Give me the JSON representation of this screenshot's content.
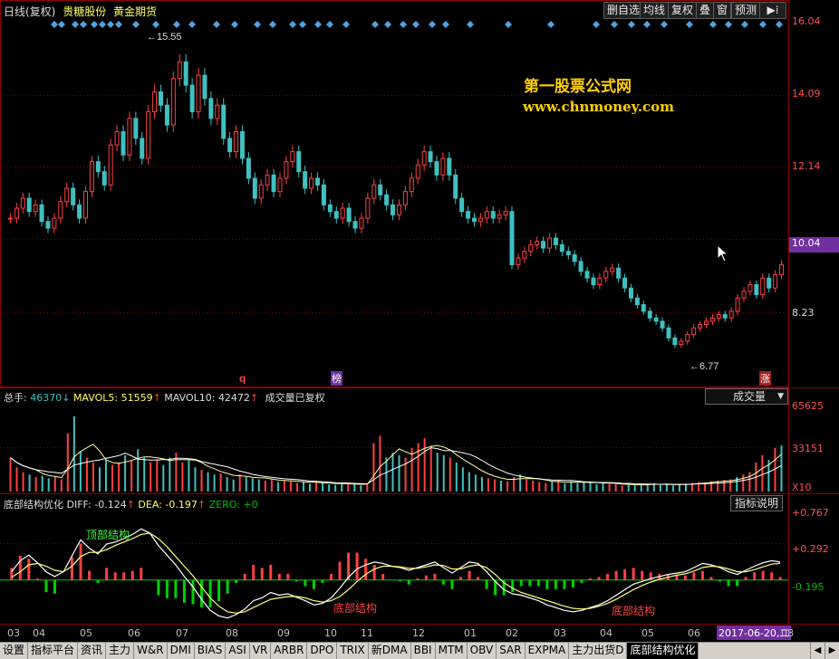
{
  "header": {
    "title": "日线(复权)",
    "stock_name": "贵糖股份",
    "concept": "黄金期货",
    "buttons": [
      "删自选",
      "均线",
      "复权",
      "叠",
      "窗",
      "预测"
    ]
  },
  "watermark": {
    "name": "第一股票公式网",
    "url": "www.chnmoney.com"
  },
  "price_panel": {
    "axis_labels": [
      "16.04",
      "14.09",
      "12.14",
      "10.04",
      "8.23"
    ],
    "current_price": "10.04",
    "high_mark": "15.55",
    "low_mark": "6.77",
    "markers": [
      "q",
      "榜",
      "涨"
    ]
  },
  "volume_panel": {
    "legend_total_label": "总手:",
    "legend_total_value": "46370",
    "legend_mavol5_label": "MAVOL5:",
    "legend_mavol5_value": "51559",
    "legend_mavol10_label": "MAVOL10:",
    "legend_mavol10_value": "42472",
    "legend_note": "成交量已复权",
    "indicator_select": "成交量",
    "axis_labels": [
      "65625",
      "33151",
      "X10"
    ]
  },
  "indicator_panel": {
    "name": "底部结构优化",
    "diff_label": "DIFF:",
    "diff_value": "-0.124",
    "dea_label": "DEA:",
    "dea_value": "-0.197",
    "zero_label": "ZERO:",
    "zero_value": "+0",
    "help_button": "指标说明",
    "axis_labels": [
      "+0.767",
      "+0.292",
      "-0.195"
    ],
    "annotations": {
      "top": "顶部结构",
      "bottom_1": "底部结构",
      "bottom_2": "底部结构"
    }
  },
  "x_axis": {
    "months": [
      "03",
      "04",
      "05",
      "06",
      "07",
      "08",
      "09",
      "10",
      "11",
      "12",
      "01",
      "02",
      "03",
      "04",
      "05",
      "06"
    ],
    "cursor_date": "2017-06-20,二",
    "cursor_tail": "08"
  },
  "tabs": [
    "设置",
    "指标平台",
    "资讯",
    "主力",
    "W&R",
    "DMI",
    "BIAS",
    "ASI",
    "VR",
    "ARBR",
    "DPO",
    "TRIX",
    "新DMA",
    "BBI",
    "MTM",
    "OBV",
    "SAR",
    "EXPMA",
    "主力出货D",
    "底部结构优化"
  ],
  "active_tab": "底部结构优化",
  "colors": {
    "up": "#ff4040",
    "down": "#40c0c0",
    "grid": "#8b0000",
    "axis_label": "#ff5050",
    "watermark": "#ffd000",
    "diamond": "#4fa3e0",
    "diff_line": "#ffffff",
    "dea_line": "#ffff80",
    "zero_line": "#00d000"
  },
  "chart_data": {
    "type": "line",
    "price_ylim": [
      6.0,
      16.4
    ],
    "volume_ylim": [
      0,
      68000
    ],
    "indicator_ylim": [
      -0.62,
      0.98
    ],
    "price_series": [
      10.6,
      10.9,
      11.2,
      10.8,
      11.0,
      10.5,
      10.3,
      10.6,
      11.1,
      11.5,
      11.0,
      10.6,
      11.4,
      12.3,
      12.0,
      11.6,
      12.8,
      13.2,
      12.5,
      13.6,
      13.0,
      12.4,
      13.8,
      14.4,
      14.0,
      13.4,
      14.8,
      15.3,
      14.6,
      13.8,
      14.9,
      14.2,
      13.6,
      14.0,
      13.0,
      12.6,
      13.2,
      12.4,
      11.8,
      11.2,
      11.6,
      11.9,
      11.4,
      11.8,
      12.3,
      12.6,
      12.0,
      11.5,
      11.8,
      11.6,
      11.0,
      10.8,
      10.6,
      10.9,
      10.5,
      10.3,
      10.6,
      11.2,
      11.6,
      11.3,
      11.0,
      10.7,
      11.0,
      11.4,
      11.8,
      12.2,
      12.6,
      12.3,
      11.9,
      12.4,
      11.9,
      11.2,
      10.8,
      10.6,
      10.5,
      10.6,
      10.8,
      10.6,
      10.7,
      10.8,
      9.2,
      9.4,
      9.6,
      9.8,
      9.9,
      9.7,
      10.0,
      9.8,
      9.6,
      9.5,
      9.3,
      9.0,
      8.8,
      8.6,
      8.8,
      9.0,
      9.1,
      8.8,
      8.5,
      8.2,
      8.0,
      7.8,
      7.6,
      7.5,
      7.3,
      7.0,
      6.8,
      6.9,
      7.1,
      7.3,
      7.4,
      7.5,
      7.6,
      7.7,
      7.6,
      7.8,
      8.2,
      8.4,
      8.6,
      8.3,
      8.8,
      8.5,
      8.9,
      9.2
    ],
    "volume_series": [
      28000,
      20000,
      16000,
      14000,
      12000,
      13000,
      11000,
      12000,
      10000,
      48000,
      62000,
      33000,
      28000,
      24000,
      20000,
      26000,
      22000,
      24000,
      30000,
      26000,
      35000,
      28000,
      24000,
      26000,
      22000,
      28000,
      32000,
      24000,
      26000,
      20000,
      18000,
      16000,
      14000,
      15000,
      12000,
      10000,
      14000,
      12000,
      11000,
      10000,
      9000,
      10000,
      8000,
      9000,
      8500,
      7000,
      8000,
      6500,
      8000,
      7000,
      6000,
      5500,
      6500,
      7000,
      6000,
      5000,
      6000,
      40000,
      46000,
      28000,
      32000,
      30000,
      28000,
      36000,
      40000,
      44000,
      38000,
      32000,
      30000,
      28000,
      24000,
      20000,
      16000,
      14000,
      12000,
      11000,
      10000,
      9000,
      8500,
      12000,
      14000,
      10000,
      9000,
      8000,
      7000,
      8000,
      9000,
      6500,
      8500,
      7000,
      7500,
      8000,
      6000,
      7000,
      6500,
      6000,
      5000,
      5500,
      5000,
      6500,
      6000,
      7000,
      5500,
      6000,
      5000,
      6000,
      6500,
      7000,
      8000,
      7500,
      8500,
      9000,
      9500,
      10000,
      12000,
      14000,
      16000,
      24000,
      30000,
      26000,
      36000,
      38000
    ],
    "indicator_diff": [
      0.12,
      0.28,
      0.36,
      0.25,
      0.12,
      0.05,
      0.12,
      0.35,
      0.58,
      0.46,
      0.38,
      0.52,
      0.55,
      0.6,
      0.66,
      0.74,
      0.68,
      0.5,
      0.36,
      0.22,
      0.05,
      -0.1,
      -0.28,
      -0.44,
      -0.52,
      -0.55,
      -0.5,
      -0.42,
      -0.3,
      -0.26,
      -0.18,
      -0.22,
      -0.2,
      -0.25,
      -0.3,
      -0.36,
      -0.34,
      -0.26,
      -0.12,
      0.04,
      0.16,
      0.22,
      0.26,
      0.24,
      0.2,
      0.18,
      0.14,
      0.18,
      0.22,
      0.26,
      0.18,
      0.1,
      0.18,
      0.26,
      0.24,
      0.12,
      -0.02,
      -0.14,
      -0.2,
      -0.22,
      -0.26,
      -0.3,
      -0.36,
      -0.4,
      -0.44,
      -0.46,
      -0.44,
      -0.4,
      -0.36,
      -0.3,
      -0.22,
      -0.14,
      -0.06,
      -0.02,
      0.02,
      0.05,
      0.08,
      0.1,
      0.12,
      0.18,
      0.24,
      0.22,
      0.18,
      0.12,
      0.08,
      0.14,
      0.2,
      0.25,
      0.28,
      0.26
    ],
    "indicator_dea": [
      0.04,
      0.12,
      0.22,
      0.24,
      0.2,
      0.14,
      0.12,
      0.2,
      0.34,
      0.4,
      0.4,
      0.44,
      0.5,
      0.55,
      0.6,
      0.66,
      0.68,
      0.6,
      0.48,
      0.34,
      0.2,
      0.06,
      -0.1,
      -0.26,
      -0.38,
      -0.46,
      -0.48,
      -0.46,
      -0.4,
      -0.34,
      -0.28,
      -0.26,
      -0.24,
      -0.24,
      -0.26,
      -0.3,
      -0.32,
      -0.3,
      -0.24,
      -0.14,
      -0.02,
      0.08,
      0.16,
      0.2,
      0.2,
      0.19,
      0.17,
      0.17,
      0.19,
      0.22,
      0.21,
      0.16,
      0.16,
      0.2,
      0.22,
      0.18,
      0.08,
      -0.04,
      -0.12,
      -0.18,
      -0.22,
      -0.26,
      -0.3,
      -0.34,
      -0.38,
      -0.41,
      -0.42,
      -0.41,
      -0.38,
      -0.34,
      -0.28,
      -0.21,
      -0.14,
      -0.08,
      -0.03,
      0.01,
      0.04,
      0.07,
      0.09,
      0.13,
      0.18,
      0.2,
      0.19,
      0.16,
      0.12,
      0.12,
      0.15,
      0.19,
      0.23,
      0.24
    ]
  }
}
